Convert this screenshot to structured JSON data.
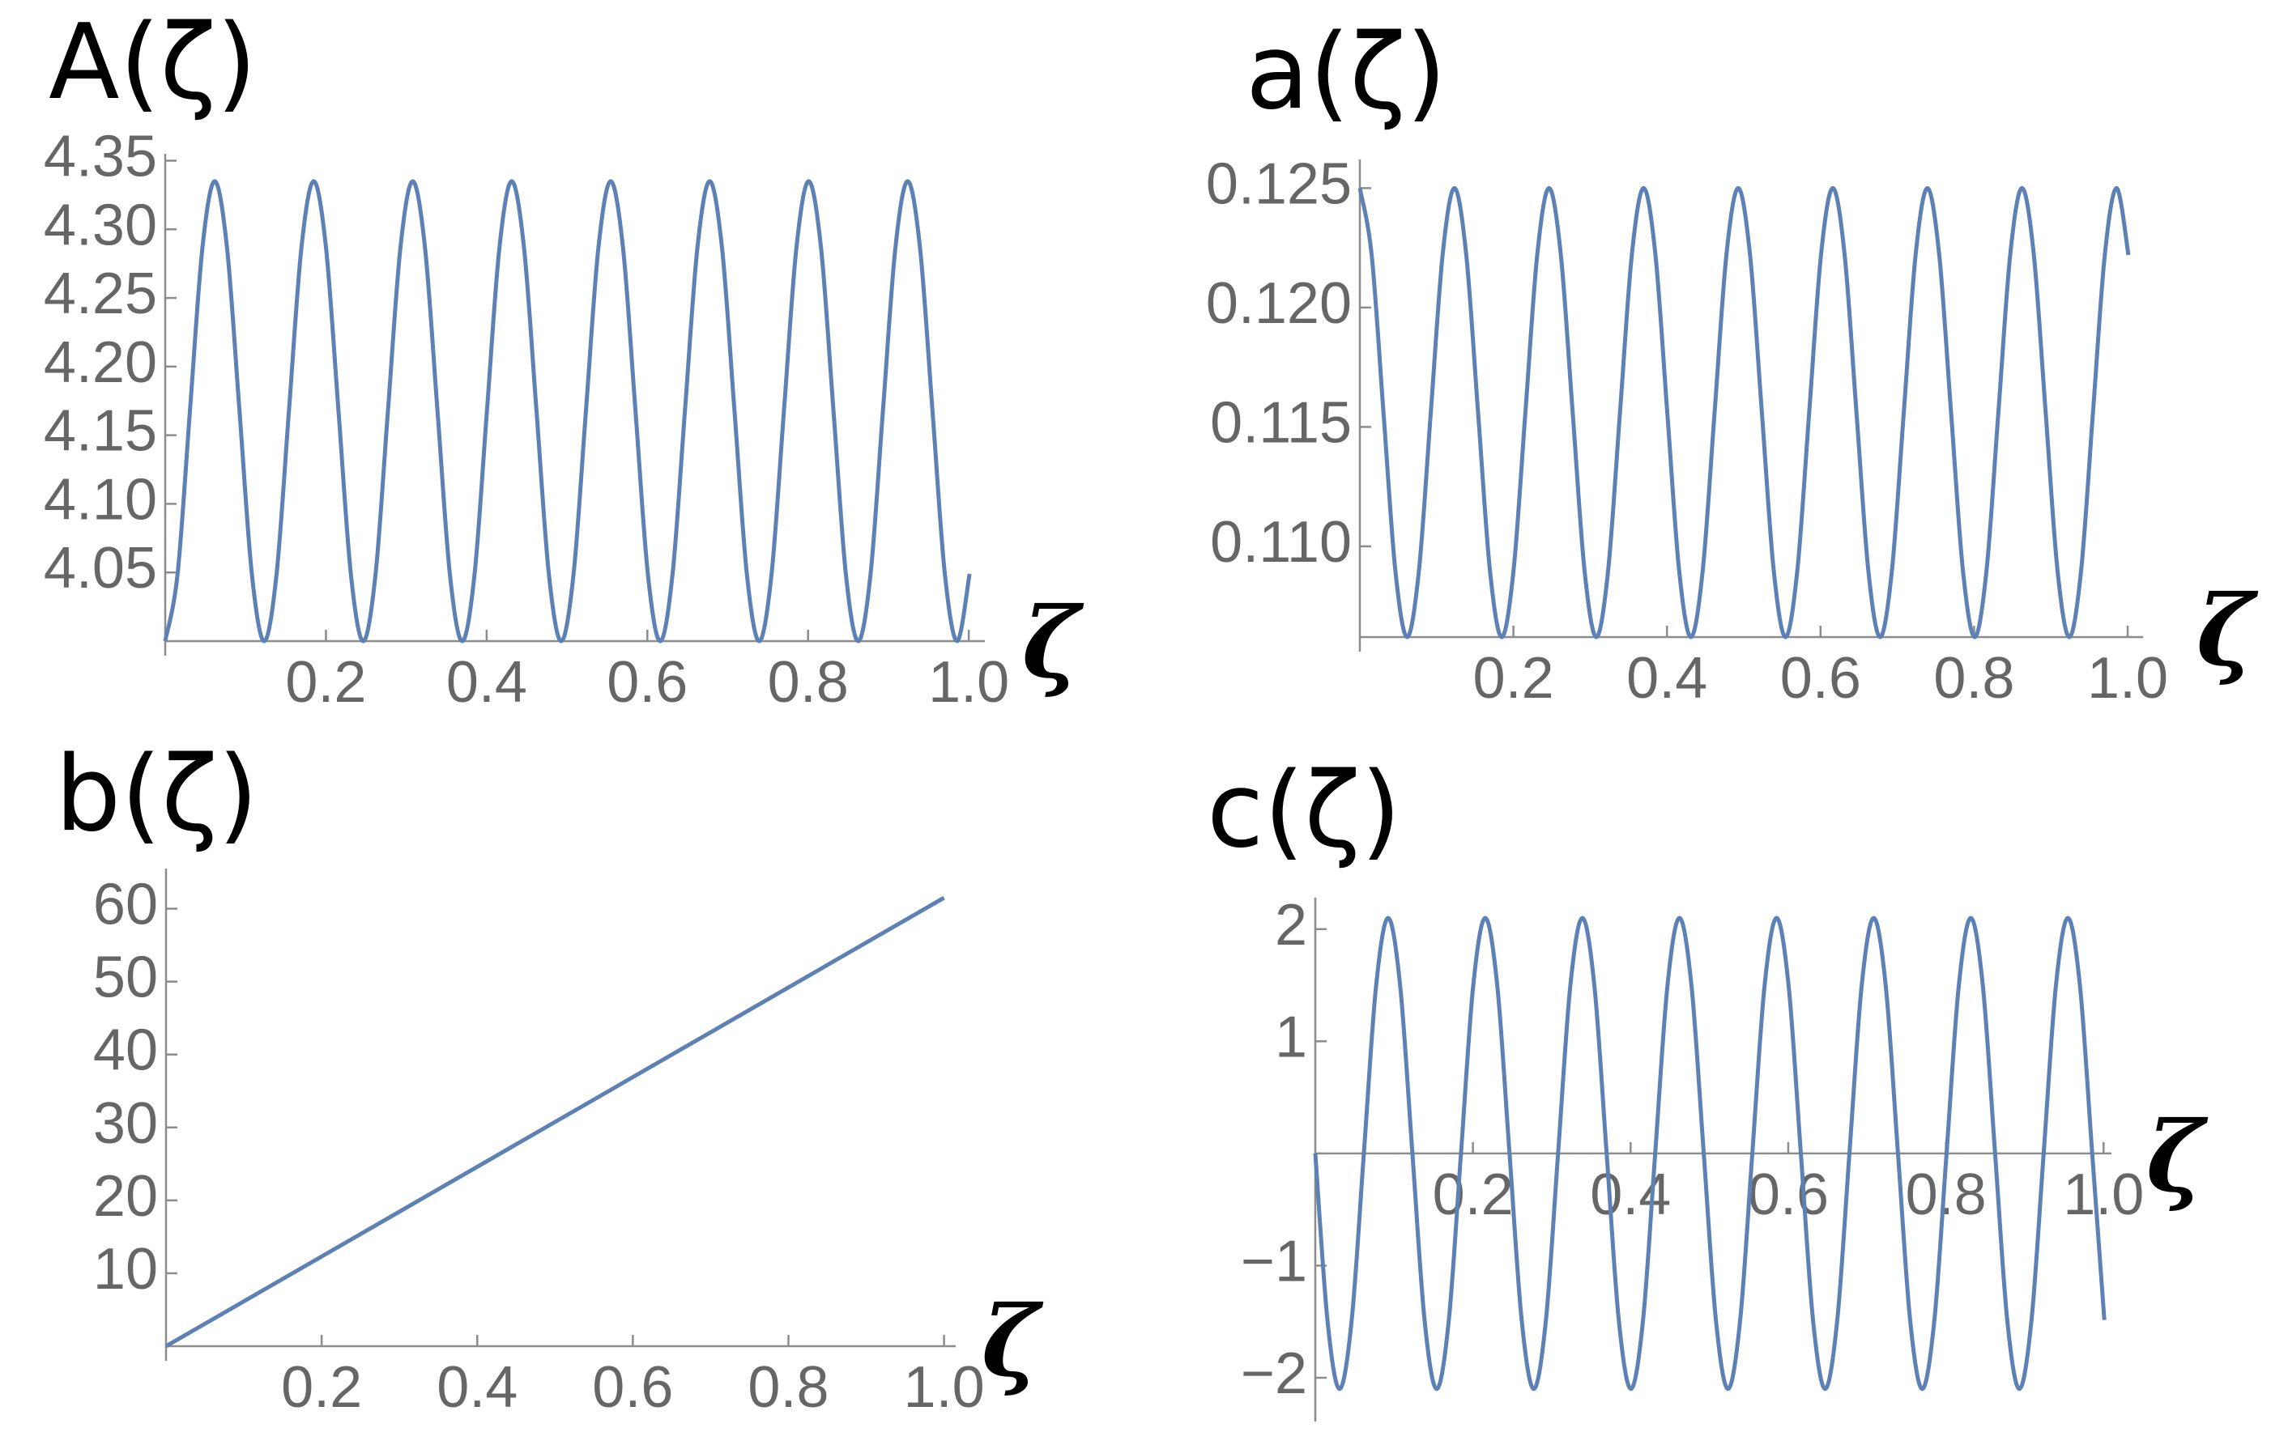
{
  "chart_data": [
    {
      "type": "line",
      "title": "A(ζ)",
      "x_label": "ζ",
      "color": "#5e81b5",
      "x": [
        0,
        0.0154,
        0.0308,
        0.0462,
        0.0616,
        0.077,
        0.0924,
        0.1078,
        0.1232,
        0.1386,
        0.154,
        0.1694,
        0.1848,
        0.2002,
        0.2156,
        0.231,
        0.2464,
        0.2618,
        0.2772,
        0.2926,
        0.308,
        0.3234,
        0.3388,
        0.3542,
        0.3696,
        0.385,
        0.4004,
        0.4158,
        0.4312,
        0.4466,
        0.462,
        0.4774,
        0.4928,
        0.5082,
        0.5236,
        0.539,
        0.5544,
        0.5698,
        0.5852,
        0.6006,
        0.616,
        0.6314,
        0.6468,
        0.6622,
        0.6776,
        0.693,
        0.7084,
        0.7238,
        0.7392,
        0.7546,
        0.77,
        0.7854,
        0.8008,
        0.8162,
        0.8316,
        0.847,
        0.8624,
        0.8778,
        0.8932,
        0.9086,
        0.924,
        0.9394,
        0.9548,
        0.9702,
        0.9856,
        1.001
      ],
      "values": [
        4.0,
        4.049,
        4.168,
        4.286,
        4.335,
        4.286,
        4.168,
        4.049,
        4.0,
        4.049,
        4.168,
        4.286,
        4.335,
        4.286,
        4.168,
        4.049,
        4.0,
        4.049,
        4.168,
        4.286,
        4.335,
        4.286,
        4.168,
        4.049,
        4.0,
        4.049,
        4.168,
        4.286,
        4.335,
        4.286,
        4.168,
        4.049,
        4.0,
        4.049,
        4.168,
        4.286,
        4.335,
        4.286,
        4.168,
        4.049,
        4.0,
        4.049,
        4.168,
        4.286,
        4.335,
        4.286,
        4.168,
        4.049,
        4.0,
        4.049,
        4.168,
        4.286,
        4.335,
        4.286,
        4.168,
        4.049,
        4.0,
        4.049,
        4.168,
        4.286,
        4.335,
        4.286,
        4.168,
        4.049,
        4.0,
        4.049
      ],
      "xlim": [
        0,
        1.02
      ],
      "ylim": [
        4.0,
        4.355
      ],
      "xticks": [
        0.2,
        0.4,
        0.6,
        0.8,
        {
          "value": 1,
          "label": "1.0"
        }
      ],
      "yticks": [
        4.05,
        {
          "value": 4.1,
          "label": "4.10"
        },
        4.15,
        {
          "value": 4.2,
          "label": "4.20"
        },
        4.25,
        {
          "value": 4.3,
          "label": "4.30"
        },
        4.35
      ]
    },
    {
      "type": "line",
      "title": "a(ζ)",
      "x_label": "ζ",
      "color": "#5e81b5",
      "x": [
        0,
        0.0154,
        0.0308,
        0.0462,
        0.0616,
        0.077,
        0.0924,
        0.1078,
        0.1232,
        0.1386,
        0.154,
        0.1694,
        0.1848,
        0.2002,
        0.2156,
        0.231,
        0.2464,
        0.2618,
        0.2772,
        0.2926,
        0.308,
        0.3234,
        0.3388,
        0.3542,
        0.3696,
        0.385,
        0.4004,
        0.4158,
        0.4312,
        0.4466,
        0.462,
        0.4774,
        0.4928,
        0.5082,
        0.5236,
        0.539,
        0.5544,
        0.5698,
        0.5852,
        0.6006,
        0.616,
        0.6314,
        0.6468,
        0.6622,
        0.6776,
        0.693,
        0.7084,
        0.7238,
        0.7392,
        0.7546,
        0.77,
        0.7854,
        0.8008,
        0.8162,
        0.8316,
        0.847,
        0.8624,
        0.8778,
        0.8932,
        0.9086,
        0.924,
        0.9394,
        0.9548,
        0.9702,
        0.9856,
        1.001
      ],
      "values": [
        0.125,
        0.1222,
        0.1156,
        0.109,
        0.1062,
        0.109,
        0.1156,
        0.1222,
        0.125,
        0.1222,
        0.1156,
        0.109,
        0.1062,
        0.109,
        0.1156,
        0.1222,
        0.125,
        0.1222,
        0.1156,
        0.109,
        0.1062,
        0.109,
        0.1156,
        0.1222,
        0.125,
        0.1222,
        0.1156,
        0.109,
        0.1062,
        0.109,
        0.1156,
        0.1222,
        0.125,
        0.1222,
        0.1156,
        0.109,
        0.1062,
        0.109,
        0.1156,
        0.1222,
        0.125,
        0.1222,
        0.1156,
        0.109,
        0.1062,
        0.109,
        0.1156,
        0.1222,
        0.125,
        0.1222,
        0.1156,
        0.109,
        0.1062,
        0.109,
        0.1156,
        0.1222,
        0.125,
        0.1222,
        0.1156,
        0.109,
        0.1062,
        0.109,
        0.1156,
        0.1222,
        0.125,
        0.1222
      ],
      "xlim": [
        0,
        1.02
      ],
      "ylim": [
        0.1062,
        0.1262
      ],
      "xticks": [
        0.2,
        0.4,
        0.6,
        0.8,
        {
          "value": 1,
          "label": "1.0"
        }
      ],
      "yticks": [
        {
          "value": 0.11,
          "label": "0.110"
        },
        0.115,
        {
          "value": 0.12,
          "label": "0.120"
        },
        0.125
      ]
    },
    {
      "type": "line",
      "title": "b(ζ)",
      "x_label": "ζ",
      "color": "#5e81b5",
      "x": [
        0,
        1
      ],
      "values": [
        0,
        61.5
      ],
      "xlim": [
        0,
        1.015
      ],
      "ylim": [
        0,
        65.5
      ],
      "xticks": [
        0.2,
        0.4,
        0.6,
        0.8,
        {
          "value": 1,
          "label": "1.0"
        }
      ],
      "yticks": [
        10,
        20,
        30,
        40,
        50,
        60
      ]
    },
    {
      "type": "line",
      "title": "c(ζ)",
      "x_label": "ζ",
      "color": "#5e81b5",
      "x": [
        0,
        0.0154,
        0.0308,
        0.0462,
        0.0616,
        0.077,
        0.0924,
        0.1078,
        0.1232,
        0.1386,
        0.154,
        0.1694,
        0.1848,
        0.2002,
        0.2156,
        0.231,
        0.2464,
        0.2618,
        0.2772,
        0.2926,
        0.308,
        0.3234,
        0.3388,
        0.3542,
        0.3696,
        0.385,
        0.4004,
        0.4158,
        0.4312,
        0.4466,
        0.462,
        0.4774,
        0.4928,
        0.5082,
        0.5236,
        0.539,
        0.5544,
        0.5698,
        0.5852,
        0.6006,
        0.616,
        0.6314,
        0.6468,
        0.6622,
        0.6776,
        0.693,
        0.7084,
        0.7238,
        0.7392,
        0.7546,
        0.77,
        0.7854,
        0.8008,
        0.8162,
        0.8316,
        0.847,
        0.8624,
        0.8778,
        0.8932,
        0.9086,
        0.924,
        0.9394,
        0.9548,
        0.9702,
        0.9856,
        1.001
      ],
      "values": [
        0,
        -1.485,
        -2.1,
        -1.485,
        0,
        1.485,
        2.1,
        1.485,
        0,
        -1.485,
        -2.1,
        -1.485,
        0,
        1.485,
        2.1,
        1.485,
        0,
        -1.485,
        -2.1,
        -1.485,
        0,
        1.485,
        2.1,
        1.485,
        0,
        -1.485,
        -2.1,
        -1.485,
        0,
        1.485,
        2.1,
        1.485,
        0,
        -1.485,
        -2.1,
        -1.485,
        0,
        1.485,
        2.1,
        1.485,
        0,
        -1.485,
        -2.1,
        -1.485,
        0,
        1.485,
        2.1,
        1.485,
        0,
        -1.485,
        -2.1,
        -1.485,
        0,
        1.485,
        2.1,
        1.485,
        0,
        -1.485,
        -2.1,
        -1.485,
        0,
        1.485,
        2.1,
        1.485,
        0,
        -1.485
      ],
      "xlim": [
        0,
        1.01
      ],
      "ylim": [
        -2.26,
        2.28
      ],
      "xticks": [
        0.2,
        0.4,
        0.6,
        0.8,
        {
          "value": 1,
          "label": "1.0"
        }
      ],
      "yticks": [
        {
          "value": -2,
          "label": "−2"
        },
        {
          "value": -1,
          "label": "−1"
        },
        1,
        2
      ]
    }
  ]
}
